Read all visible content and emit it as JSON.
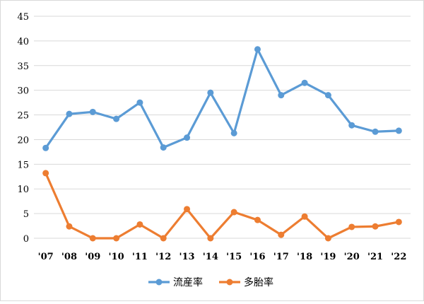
{
  "chart_data": {
    "type": "line",
    "title": "",
    "xlabel": "",
    "ylabel": "",
    "categories": [
      "'07",
      "'08",
      "'09",
      "'10",
      "'11",
      "'12",
      "'13",
      "'14",
      "'15",
      "'16",
      "'17",
      "'18",
      "'19",
      "'20",
      "'21",
      "'22"
    ],
    "ylim": [
      0,
      45
    ],
    "yticks": [
      0,
      5,
      10,
      15,
      20,
      25,
      30,
      35,
      40,
      45
    ],
    "grid": true,
    "legend_position": "bottom",
    "series": [
      {
        "name": "流産率",
        "color": "#5b9bd5",
        "values": [
          18.3,
          25.2,
          25.6,
          24.2,
          27.5,
          18.4,
          20.4,
          29.5,
          21.3,
          38.3,
          29.0,
          31.5,
          29.0,
          22.9,
          21.6,
          21.8
        ]
      },
      {
        "name": "多胎率",
        "color": "#ed7d31",
        "values": [
          13.2,
          2.4,
          0.0,
          0.0,
          2.8,
          0.0,
          5.9,
          0.0,
          5.3,
          3.7,
          0.7,
          4.4,
          0.0,
          2.3,
          2.4,
          3.3
        ]
      }
    ]
  }
}
